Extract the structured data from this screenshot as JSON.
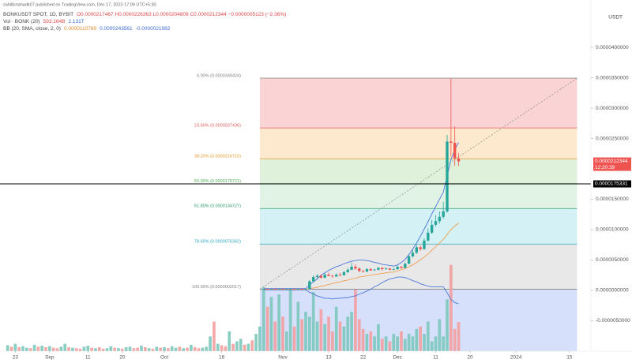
{
  "chart_data": {
    "type": "candlestick",
    "header": {
      "publisher": "sahilbinahadk07 published on TradingView.com, Dec 17, 2023 17:09 UTC+5:30",
      "symbol": "BONKUSDT SPOT, 1D, BYBIT",
      "ohlc": "O0.0000217467 H0.0000226363 L0.0000204809 C0.0000212344 −0.0000005123 (−2.36%)",
      "vol_name": "Vol · BONK (20)",
      "vol_values": [
        "593.164B",
        "2.131T"
      ],
      "bb_name": "BB (20, SMA, close, 2, 0)",
      "bb_values": [
        "0.0000110789",
        "0.0000243561",
        "-0.0000021982"
      ]
    },
    "currency": "USDT",
    "xlim": [
      "2023-08-19",
      "2024-01-20"
    ],
    "xticks": [
      {
        "value": "2023-08-23",
        "label": "23"
      },
      {
        "value": "2023-09-01",
        "label": "Sep"
      },
      {
        "value": "2023-09-11",
        "label": "11"
      },
      {
        "value": "2023-09-20",
        "label": "20"
      },
      {
        "value": "2023-10-01",
        "label": "Oct"
      },
      {
        "value": "2023-10-16",
        "label": "16"
      },
      {
        "value": "2023-11-01",
        "label": "Nov"
      },
      {
        "value": "2023-11-13",
        "label": "13"
      },
      {
        "value": "2023-11-22",
        "label": "22"
      },
      {
        "value": "2023-12-01",
        "label": "Dec"
      },
      {
        "value": "2023-12-11",
        "label": "11"
      },
      {
        "value": "2023-12-20",
        "label": "20"
      },
      {
        "value": "2024-01-01",
        "label": "2024"
      },
      {
        "value": "2024-01-15",
        "label": "15"
      }
    ],
    "ylim": [
      -1e-05,
      4.78e-05
    ],
    "yticks": [
      {
        "value": 4e-05,
        "label": "0.0000400000"
      },
      {
        "value": 3.5e-05,
        "label": "0.0000350000"
      },
      {
        "value": 3e-05,
        "label": "0.0000300000"
      },
      {
        "value": 2.5e-05,
        "label": "0.0000250000"
      },
      {
        "value": 1.5e-05,
        "label": "0.0000150000"
      },
      {
        "value": 1e-05,
        "label": "0.0000100000"
      },
      {
        "value": 5e-06,
        "label": "0.0000050000"
      },
      {
        "value": 0,
        "label": "0.0000000000"
      },
      {
        "value": -5e-06,
        "label": "-0.0000050000"
      }
    ],
    "grid": false,
    "up_color": "#26a69a",
    "down_color": "#ef5350",
    "candles": {
      "x": [
        "2023-10-27",
        "2023-10-28",
        "2023-10-29",
        "2023-10-30",
        "2023-10-31",
        "2023-11-01",
        "2023-11-02",
        "2023-11-03",
        "2023-11-04",
        "2023-11-05",
        "2023-11-06",
        "2023-11-07",
        "2023-11-08",
        "2023-11-09",
        "2023-11-10",
        "2023-11-11",
        "2023-11-12",
        "2023-11-13",
        "2023-11-14",
        "2023-11-15",
        "2023-11-16",
        "2023-11-17",
        "2023-11-18",
        "2023-11-19",
        "2023-11-20",
        "2023-11-21",
        "2023-11-22",
        "2023-11-23",
        "2023-11-24",
        "2023-11-25",
        "2023-11-26",
        "2023-11-27",
        "2023-11-28",
        "2023-11-29",
        "2023-11-30",
        "2023-12-01",
        "2023-12-02",
        "2023-12-03",
        "2023-12-04",
        "2023-12-05",
        "2023-12-06",
        "2023-12-07",
        "2023-12-08",
        "2023-12-09",
        "2023-12-10",
        "2023-12-11",
        "2023-12-12",
        "2023-12-13",
        "2023-12-14",
        "2023-12-15",
        "2023-12-16",
        "2023-12-17"
      ],
      "open": [
        1.9e-07,
        2.1e-07,
        1.9e-07,
        2.1e-07,
        1.9e-07,
        2.1e-07,
        1.9e-07,
        1.9e-07,
        2.1e-07,
        1.9e-07,
        2.1e-07,
        1.9e-07,
        2.1e-07,
        1.5e-06,
        2.2e-06,
        2.4e-06,
        2.1e-06,
        2.6e-06,
        2.4e-06,
        2.3e-06,
        2.6e-06,
        2.5e-06,
        3e-06,
        3.4e-06,
        3.9e-06,
        3.6e-06,
        3.2e-06,
        3.1e-06,
        3.5e-06,
        3.3e-06,
        3.4e-06,
        3.7e-06,
        3.5e-06,
        3.6e-06,
        3.4e-06,
        3.5e-06,
        3.9e-06,
        3.7e-06,
        4.4e-06,
        5.6e-06,
        6.2e-06,
        7.1e-06,
        6.8e-06,
        8.2e-06,
        9.5e-06,
        1.08e-05,
        1.14e-05,
        1.21e-05,
        1.3e-05,
        2.45e-05,
        2.43e-05,
        2.17467e-05
      ],
      "high": [
        2.2e-07,
        2.2e-07,
        2.2e-07,
        2.2e-07,
        2.2e-07,
        2.2e-07,
        2.2e-07,
        2.2e-07,
        2.2e-07,
        2.2e-07,
        2.2e-07,
        2.2e-07,
        1.7e-06,
        2.5e-06,
        2.7e-06,
        2.6e-06,
        2.8e-06,
        2.9e-06,
        2.6e-06,
        2.8e-06,
        2.9e-06,
        3.2e-06,
        3.7e-06,
        4.6e-06,
        4.3e-06,
        3.8e-06,
        3.4e-06,
        3.7e-06,
        3.7e-06,
        3.6e-06,
        3.9e-06,
        3.8e-06,
        3.8e-06,
        3.7e-06,
        3.7e-06,
        4.1e-06,
        4e-06,
        4.6e-06,
        5.9e-06,
        6.8e-06,
        7.5e-06,
        7.4e-06,
        8.6e-06,
        1.02e-05,
        1.16e-05,
        1.24e-05,
        1.3e-05,
        1.46e-05,
        2.56e-05,
        3.49424e-05,
        2.7e-05,
        2.26363e-05
      ],
      "low": [
        1.8e-07,
        1.8e-07,
        1.8e-07,
        1.8e-07,
        1.8e-07,
        1.8e-07,
        1.8e-07,
        1.8e-07,
        1.8e-07,
        1.8e-07,
        1.8e-07,
        1.8e-07,
        2e-07,
        1.4e-06,
        2e-06,
        1.9e-06,
        2e-06,
        2.3e-06,
        2.1e-06,
        2.2e-06,
        2.3e-06,
        2.4e-06,
        2.9e-06,
        3.3e-06,
        3.4e-06,
        3e-06,
        2.9e-06,
        3e-06,
        3.2e-06,
        3.2e-06,
        3.3e-06,
        3.3e-06,
        3.4e-06,
        3.3e-06,
        3.3e-06,
        3.4e-06,
        3.6e-06,
        3.6e-06,
        4.3e-06,
        5.4e-06,
        6e-06,
        6.5e-06,
        6.7e-06,
        8e-06,
        9.3e-06,
        1.05e-05,
        1.1e-05,
        1.18e-05,
        1.28e-05,
        2.2e-05,
        2.05e-05,
        2.04809e-05
      ],
      "close": [
        2.1e-07,
        1.9e-07,
        2.1e-07,
        1.9e-07,
        2.1e-07,
        1.9e-07,
        2.1e-07,
        2.1e-07,
        1.9e-07,
        2.1e-07,
        1.9e-07,
        2.1e-07,
        1.5e-06,
        2.2e-06,
        2.4e-06,
        2.1e-06,
        2.6e-06,
        2.4e-06,
        2.3e-06,
        2.6e-06,
        2.5e-06,
        3e-06,
        3.4e-06,
        3.9e-06,
        3.6e-06,
        3.2e-06,
        3.1e-06,
        3.5e-06,
        3.3e-06,
        3.4e-06,
        3.7e-06,
        3.5e-06,
        3.6e-06,
        3.4e-06,
        3.5e-06,
        3.9e-06,
        3.7e-06,
        4.4e-06,
        5.6e-06,
        6.2e-06,
        7.1e-06,
        6.8e-06,
        8.2e-06,
        9.5e-06,
        1.08e-05,
        1.14e-05,
        1.21e-05,
        1.3e-05,
        2.45e-05,
        2.43e-05,
        2.17467e-05,
        2.12344e-05
      ]
    },
    "bb": {
      "basis_color": "#f0a050",
      "band_color": "#4a78d8",
      "basis": [
        2e-07,
        2e-07,
        2e-07,
        2e-07,
        2e-07,
        2e-07,
        2e-07,
        2e-07,
        2e-07,
        2e-07,
        2e-07,
        2e-07,
        3e-07,
        4e-07,
        5e-07,
        7e-07,
        8e-07,
        1e-06,
        1.1e-06,
        1.3e-06,
        1.4e-06,
        1.6e-06,
        1.7e-06,
        1.9e-06,
        2e-06,
        2.2e-06,
        2.3e-06,
        2.4e-06,
        2.5e-06,
        2.6e-06,
        2.7e-06,
        2.8e-06,
        2.9e-06,
        3e-06,
        3e-06,
        3.2e-06,
        3.4e-06,
        3.6e-06,
        3.9e-06,
        4.2e-06,
        4.6e-06,
        5e-06,
        5.5e-06,
        6e-06,
        6.6e-06,
        7.2e-06,
        7.8e-06,
        8.4e-06,
        9.2e-06,
        1e-05,
        1.06e-05,
        1.10789e-05
      ],
      "upper": [
        3e-07,
        3e-07,
        3e-07,
        3e-07,
        3e-07,
        3e-07,
        3e-07,
        3e-07,
        3e-07,
        3e-07,
        3e-07,
        3e-07,
        9e-07,
        1.4e-06,
        1.9e-06,
        2.5e-06,
        2.9e-06,
        3.3e-06,
        3.6e-06,
        3.9e-06,
        4.1e-06,
        4.4e-06,
        4.6e-06,
        4.8e-06,
        4.9e-06,
        5e-06,
        5e-06,
        4.9e-06,
        4.8e-06,
        4.6e-06,
        4.5e-06,
        4.3e-06,
        4.2e-06,
        4.1e-06,
        4e-06,
        4.2e-06,
        4.6e-06,
        5.1e-06,
        5.9e-06,
        6.8e-06,
        7.8e-06,
        8.9e-06,
        1.01e-05,
        1.13e-05,
        1.26e-05,
        1.38e-05,
        1.5e-05,
        1.62e-05,
        1.88e-05,
        2.15e-05,
        2.32e-05,
        2.43561e-05
      ],
      "lower": [
        1e-07,
        1e-07,
        1e-07,
        1e-07,
        1e-07,
        1e-07,
        1e-07,
        1e-07,
        1e-07,
        1e-07,
        1e-07,
        1e-07,
        -3e-07,
        -6e-07,
        -9e-07,
        -1.1e-06,
        -1.3e-06,
        -1.3e-06,
        -1.4e-06,
        -1.3e-06,
        -1.3e-06,
        -1.2e-06,
        -1.2e-06,
        -1e-06,
        -9e-07,
        -6e-07,
        -4e-07,
        -1e-07,
        2e-07,
        6e-07,
        9e-07,
        1.3e-06,
        1.6e-06,
        1.9e-06,
        2e-06,
        2.2e-06,
        2.2e-06,
        2.1e-06,
        1.9e-06,
        1.6e-06,
        1.4e-06,
        1.1e-06,
        9e-07,
        7e-07,
        6e-07,
        6e-07,
        6e-07,
        6e-07,
        -4e-07,
        -1.5e-06,
        -2e-06,
        -2.1982e-06
      ]
    },
    "volume": {
      "ylim": [
        0,
        3200
      ],
      "up_color": "#7cc8bd",
      "down_color": "#f3a0a0",
      "x": [
        "2023-08-21",
        "2023-08-22",
        "2023-08-23",
        "2023-08-24",
        "2023-08-25",
        "2023-08-26",
        "2023-08-27",
        "2023-08-28",
        "2023-08-29",
        "2023-08-30",
        "2023-08-31",
        "2023-09-01",
        "2023-09-02",
        "2023-09-03",
        "2023-09-04",
        "2023-09-05",
        "2023-09-06",
        "2023-09-07",
        "2023-09-08",
        "2023-09-09",
        "2023-09-10",
        "2023-09-11",
        "2023-09-12",
        "2023-09-13",
        "2023-09-14",
        "2023-09-15",
        "2023-09-16",
        "2023-09-17",
        "2023-09-18",
        "2023-09-19",
        "2023-09-20",
        "2023-09-21",
        "2023-09-22",
        "2023-09-23",
        "2023-09-24",
        "2023-09-25",
        "2023-09-26",
        "2023-09-27",
        "2023-09-28",
        "2023-09-29",
        "2023-09-30",
        "2023-10-01",
        "2023-10-02",
        "2023-10-03",
        "2023-10-04",
        "2023-10-05",
        "2023-10-06",
        "2023-10-07",
        "2023-10-08",
        "2023-10-09",
        "2023-10-10",
        "2023-10-11",
        "2023-10-12",
        "2023-10-13",
        "2023-10-14",
        "2023-10-15",
        "2023-10-16",
        "2023-10-17",
        "2023-10-18",
        "2023-10-19",
        "2023-10-20",
        "2023-10-21",
        "2023-10-22",
        "2023-10-23",
        "2023-10-24",
        "2023-10-25",
        "2023-10-26",
        "2023-10-27",
        "2023-10-28",
        "2023-10-29",
        "2023-10-30",
        "2023-10-31",
        "2023-11-01",
        "2023-11-02",
        "2023-11-03",
        "2023-11-04",
        "2023-11-05",
        "2023-11-06",
        "2023-11-07",
        "2023-11-08",
        "2023-11-09",
        "2023-11-10",
        "2023-11-11",
        "2023-11-12",
        "2023-11-13",
        "2023-11-14",
        "2023-11-15",
        "2023-11-16",
        "2023-11-17",
        "2023-11-18",
        "2023-11-19",
        "2023-11-20",
        "2023-11-21",
        "2023-11-22",
        "2023-11-23",
        "2023-11-24",
        "2023-11-25",
        "2023-11-26",
        "2023-11-27",
        "2023-11-28",
        "2023-11-29",
        "2023-11-30",
        "2023-12-01",
        "2023-12-02",
        "2023-12-03",
        "2023-12-04",
        "2023-12-05",
        "2023-12-06",
        "2023-12-07",
        "2023-12-08",
        "2023-12-09",
        "2023-12-10",
        "2023-12-11",
        "2023-12-12",
        "2023-12-13",
        "2023-12-14",
        "2023-12-15",
        "2023-12-16",
        "2023-12-17"
      ],
      "values": [
        120,
        90,
        150,
        80,
        100,
        70,
        60,
        130,
        90,
        110,
        80,
        100,
        70,
        60,
        90,
        150,
        80,
        70,
        60,
        50,
        90,
        110,
        70,
        60,
        80,
        50,
        60,
        100,
        70,
        60,
        50,
        80,
        90,
        60,
        70,
        110,
        80,
        60,
        50,
        90,
        70,
        80,
        60,
        100,
        70,
        90,
        60,
        70,
        130,
        80,
        60,
        70,
        90,
        300,
        600,
        150,
        120,
        100,
        400,
        150,
        200,
        250,
        130,
        150,
        220,
        350,
        500,
        1300,
        900,
        1100,
        600,
        1150,
        700,
        400,
        1250,
        500,
        1000,
        650,
        800,
        700,
        1200,
        600,
        850,
        550,
        700,
        400,
        900,
        600,
        500,
        700,
        800,
        1250,
        650,
        450,
        350,
        400,
        300,
        550,
        250,
        300,
        200,
        350,
        300,
        400,
        250,
        350,
        300,
        450,
        500,
        350,
        600,
        200,
        300,
        650,
        300,
        1050,
        1750,
        450,
        593.164
      ],
      "rising": [
        1,
        0,
        1,
        0,
        1,
        1,
        0,
        1,
        0,
        1,
        0,
        1,
        0,
        0,
        1,
        1,
        0,
        1,
        0,
        0,
        1,
        1,
        0,
        1,
        0,
        0,
        1,
        1,
        0,
        1,
        0,
        1,
        1,
        0,
        0,
        1,
        0,
        1,
        0,
        1,
        0,
        1,
        0,
        1,
        1,
        0,
        1,
        0,
        1,
        0,
        0,
        1,
        1,
        1,
        0,
        1,
        0,
        0,
        1,
        0,
        1,
        1,
        0,
        1,
        0,
        1,
        1,
        1,
        0,
        1,
        0,
        1,
        0,
        1,
        1,
        0,
        1,
        0,
        1,
        1,
        1,
        1,
        0,
        1,
        0,
        0,
        1,
        0,
        1,
        1,
        1,
        0,
        0,
        0,
        1,
        0,
        1,
        1,
        0,
        1,
        0,
        1,
        1,
        0,
        1,
        1,
        1,
        1,
        0,
        1,
        1,
        1,
        1,
        1,
        1,
        1,
        0,
        0,
        0
      ]
    },
    "fib": {
      "start": "2023-10-26",
      "end": "2024-01-17",
      "trend_color": "#888888",
      "levels": [
        {
          "label": "0.00% (0.0000349424)",
          "value": 3.49424e-05,
          "color": "#808080"
        },
        {
          "label": "23.60% (0.0000267436)",
          "value": 2.67436e-05,
          "color": "#e35d5d"
        },
        {
          "label": "38.20% (0.0000216715)",
          "value": 2.16715e-05,
          "color": "#e89a2e"
        },
        {
          "label": "50.00% (0.0000175721)",
          "value": 1.75721e-05,
          "color": "#4caf50"
        },
        {
          "label": "61.80% (0.0000134727)",
          "value": 1.34727e-05,
          "color": "#2e9e6a"
        },
        {
          "label": "78.60% (0.0000076362)",
          "value": 7.6362e-06,
          "color": "#2aa7c0"
        },
        {
          "label": "100.00% (0.0000002017)",
          "value": 2.017e-07,
          "color": "#808080"
        }
      ],
      "zone_colors": [
        "#f9cccc",
        "#fde5c6",
        "#d9eed3",
        "#dcf1e0",
        "#cdeef3",
        "#e4e4e4",
        "#cfdbfa"
      ]
    },
    "hline": {
      "value": 1.75331e-05,
      "label": "0.0000175331",
      "color": "#000000"
    },
    "price_label": {
      "value": 2.12344e-05,
      "label": "0.0000212344",
      "countdown": "12:20:39",
      "color": "#ef5350"
    }
  }
}
